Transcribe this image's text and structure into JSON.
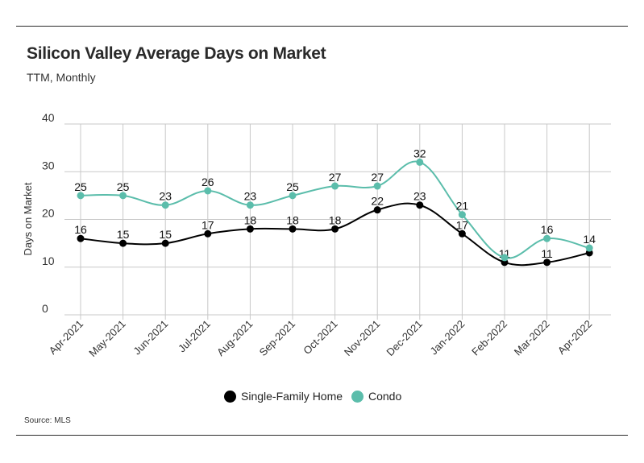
{
  "title": "Silicon Valley Average Days on Market",
  "subtitle": "TTM, Monthly",
  "source": "Source:  MLS",
  "colors": {
    "single_family": "#000000",
    "condo": "#5bbdab",
    "grid": "#c8c8c8"
  },
  "chart_data": {
    "type": "line",
    "title": "Silicon Valley Average Days on Market",
    "subtitle": "TTM, Monthly",
    "xlabel": "",
    "ylabel": "Days on Market",
    "ylim": [
      0,
      40
    ],
    "yticks": [
      "0",
      "10",
      "20",
      "30",
      "40"
    ],
    "grid": true,
    "legend": "bottom",
    "categories": [
      "Apr-2021",
      "May-2021",
      "Jun-2021",
      "Jul-2021",
      "Aug-2021",
      "Sep-2021",
      "Oct-2021",
      "Nov-2021",
      "Dec-2021",
      "Jan-2022",
      "Feb-2022",
      "Mar-2022",
      "Apr-2022"
    ],
    "series": [
      {
        "name": "Single-Family Home",
        "color": "#000000",
        "values": [
          16,
          15,
          15,
          17,
          18,
          18,
          18,
          22,
          23,
          17,
          11,
          11,
          13
        ],
        "labels": [
          "16",
          "15",
          "15",
          "17",
          "18",
          "18",
          "18",
          "22",
          "23",
          "17",
          "11",
          "11",
          ""
        ]
      },
      {
        "name": "Condo",
        "color": "#5bbdab",
        "values": [
          25,
          25,
          23,
          26,
          23,
          25,
          27,
          27,
          32,
          21,
          12,
          16,
          14
        ],
        "labels": [
          "25",
          "25",
          "23",
          "26",
          "23",
          "25",
          "27",
          "27",
          "32",
          "21",
          "",
          "16",
          "14"
        ]
      }
    ]
  }
}
